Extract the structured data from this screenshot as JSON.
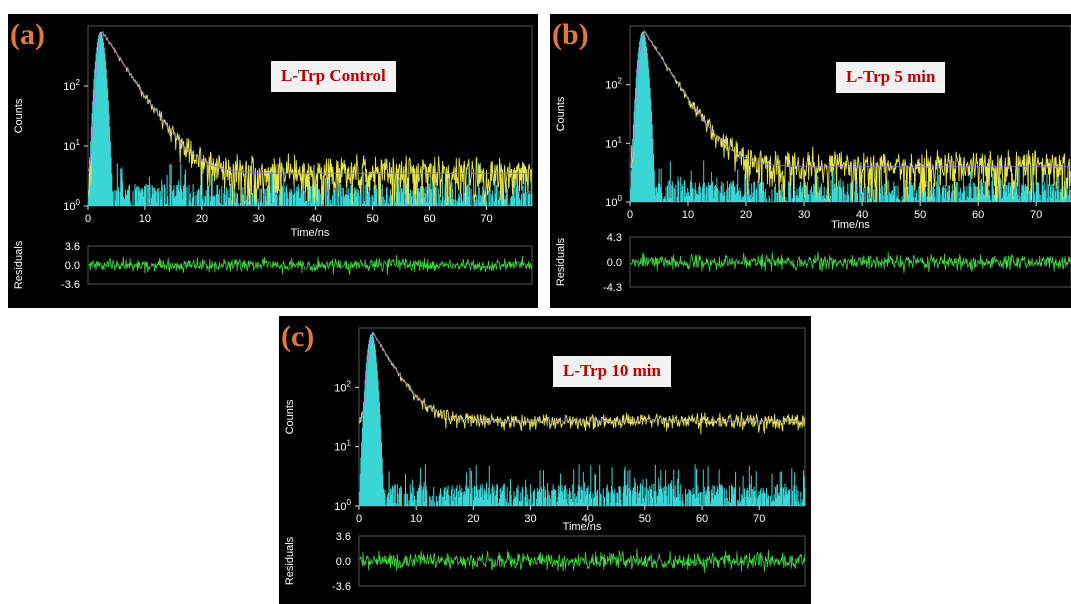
{
  "panels": [
    {
      "letter": "(a)",
      "sample_label": "L-Trp  Control",
      "accent": "#e07a3a"
    },
    {
      "letter": "(b)",
      "sample_label": "L-Trp  5 min",
      "accent": "#e07a3a"
    },
    {
      "letter": "(c)",
      "sample_label": "L-Trp  10 min",
      "accent": "#e07a3a"
    }
  ],
  "colors": {
    "decay": "#e6e64a",
    "irf": "#3ad6d6",
    "fit": "#8a6cff",
    "residuals": "#3fd63f",
    "label_text": "#c00000",
    "label_bg": "#f2f2f2"
  },
  "chart_data": [
    {
      "type": "line",
      "title": "L-Trp  Control",
      "xlabel": "Time/ns",
      "ylabel": "Counts",
      "yscale": "log",
      "xlim": [
        0,
        78
      ],
      "ylim": [
        1,
        1000
      ],
      "x_ticks": [
        0,
        10,
        20,
        30,
        40,
        50,
        60,
        70
      ],
      "y_ticks": [
        "10^0",
        "10^1",
        "10^2"
      ],
      "series": [
        {
          "label": "decay",
          "peak_time_ns": 2.5,
          "peak_counts": 800,
          "tau_ns": 3.0,
          "background_counts": 3.5
        },
        {
          "label": "irf",
          "peak_time_ns": 2.2,
          "peak_counts": 800,
          "background_counts": 1.3
        }
      ],
      "residuals": {
        "ylabel": "Residuals",
        "ticks": [
          3.6,
          0.0,
          -3.6
        ],
        "ylim": [
          -3.6,
          3.6
        ]
      }
    },
    {
      "type": "line",
      "title": "L-Trp  5 min",
      "xlabel": "Time/ns",
      "ylabel": "Counts",
      "yscale": "log",
      "xlim": [
        0,
        76
      ],
      "ylim": [
        1,
        1000
      ],
      "x_ticks": [
        0,
        10,
        20,
        30,
        40,
        50,
        60,
        70
      ],
      "y_ticks": [
        "10^0",
        "10^1",
        "10^2"
      ],
      "series": [
        {
          "label": "decay",
          "peak_time_ns": 2.5,
          "peak_counts": 800,
          "tau_ns": 2.8,
          "background_counts": 4
        },
        {
          "label": "irf",
          "peak_time_ns": 2.2,
          "peak_counts": 800,
          "background_counts": 1.3
        }
      ],
      "residuals": {
        "ylabel": "Residuals",
        "ticks": [
          4.3,
          0.0,
          -4.3
        ],
        "ylim": [
          -4.3,
          4.3
        ]
      }
    },
    {
      "type": "line",
      "title": "L-Trp  10 min",
      "xlabel": "Time/ns",
      "ylabel": "Counts",
      "yscale": "log",
      "xlim": [
        0,
        78
      ],
      "ylim": [
        1,
        1000
      ],
      "x_ticks": [
        0,
        10,
        20,
        30,
        40,
        50,
        60,
        70
      ],
      "y_ticks": [
        "10^0",
        "10^1",
        "10^2"
      ],
      "series": [
        {
          "label": "decay",
          "peak_time_ns": 2.5,
          "peak_counts": 800,
          "tau_ns": 2.6,
          "background_counts": 27
        },
        {
          "label": "irf",
          "peak_time_ns": 2.2,
          "peak_counts": 800,
          "background_counts": 1.3
        }
      ],
      "residuals": {
        "ylabel": "Residuals",
        "ticks": [
          3.6,
          0.0,
          -3.6
        ],
        "ylim": [
          -3.6,
          3.6
        ]
      }
    }
  ]
}
